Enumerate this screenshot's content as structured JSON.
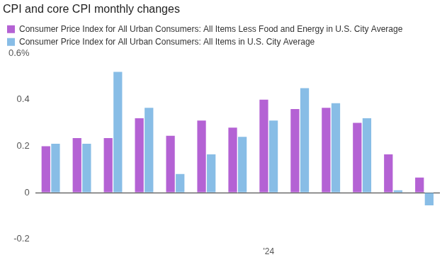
{
  "chart_data": {
    "type": "bar",
    "title": "CPI and core CPI monthly changes",
    "categories": [
      null,
      null,
      null,
      null,
      null,
      null,
      null,
      "'24",
      null,
      null,
      null,
      null,
      null
    ],
    "series": [
      {
        "name": "Consumer Price Index for All Urban Consumers: All Items Less Food and Energy in U.S. City Average",
        "color": "#b462d4",
        "values": [
          0.2,
          0.235,
          0.235,
          0.32,
          0.245,
          0.31,
          0.28,
          0.4,
          0.36,
          0.365,
          0.3,
          0.165,
          0.065
        ]
      },
      {
        "name": "Consumer Price Index for All Urban Consumers: All Items in U.S. City Average",
        "color": "#88bde6",
        "values": [
          0.21,
          0.21,
          0.52,
          0.365,
          0.08,
          0.165,
          0.24,
          0.31,
          0.45,
          0.385,
          0.32,
          0.01,
          -0.055
        ]
      }
    ],
    "ylim": [
      -0.2,
      0.6
    ],
    "yticks": [
      -0.2,
      0,
      0.2,
      0.4,
      {
        "value": 0.6,
        "label": "0.6%"
      }
    ],
    "grid": false,
    "legend": "top-left"
  }
}
